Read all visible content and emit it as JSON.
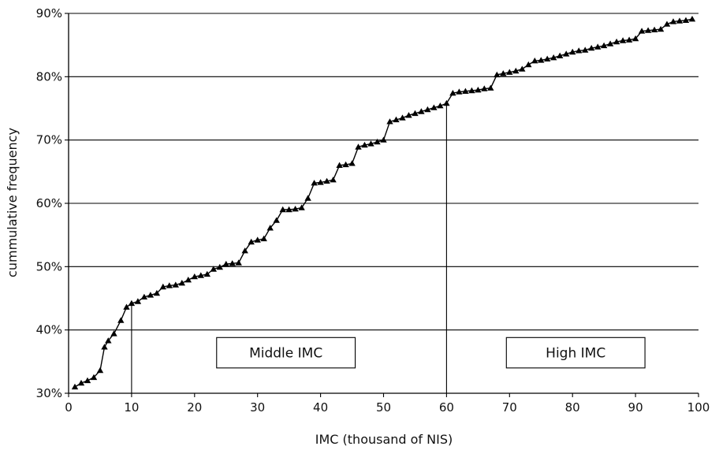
{
  "chart_data": {
    "type": "line",
    "xlabel": "IMC (thousand of NIS)",
    "ylabel": "cummulative frequency",
    "xlim": [
      0,
      100
    ],
    "ylim": [
      30,
      90
    ],
    "x_ticks": [
      "0",
      "10",
      "20",
      "30",
      "40",
      "50",
      "60",
      "70",
      "80",
      "90",
      "100"
    ],
    "y_ticks": [
      "30%",
      "40%",
      "50%",
      "60%",
      "70%",
      "80%",
      "90%"
    ],
    "grid": "horizontal",
    "marker": "triangle",
    "series": [
      {
        "x": [
          1,
          2,
          3,
          4,
          5,
          5.7,
          6.3,
          7.2,
          8.3,
          9.2,
          10,
          11,
          12,
          13,
          14,
          15,
          16,
          17,
          18,
          19,
          20,
          21,
          22,
          23,
          24,
          25,
          26,
          27,
          28,
          29,
          30,
          31,
          32,
          33,
          34,
          35,
          36,
          37,
          38,
          39,
          40,
          41,
          42,
          43,
          44,
          45,
          46,
          47,
          48,
          49,
          50,
          51,
          52,
          53,
          54,
          55,
          56,
          57,
          58,
          59,
          60,
          61,
          62,
          63,
          64,
          65,
          66,
          67,
          68,
          69,
          70,
          71,
          72,
          73,
          74,
          75,
          76,
          77,
          78,
          79,
          80,
          81,
          82,
          83,
          84,
          85,
          86,
          87,
          88,
          89,
          90,
          91,
          92,
          93,
          94,
          95,
          96,
          97,
          98,
          99
        ],
        "y": [
          31.0,
          31.6,
          32.0,
          32.5,
          33.6,
          37.3,
          38.3,
          39.4,
          41.5,
          43.6,
          44.2,
          44.5,
          45.2,
          45.5,
          45.8,
          46.8,
          47.0,
          47.1,
          47.4,
          47.9,
          48.4,
          48.6,
          48.8,
          49.6,
          49.9,
          50.4,
          50.5,
          50.6,
          52.5,
          53.9,
          54.2,
          54.4,
          56.1,
          57.3,
          59.0,
          59.0,
          59.1,
          59.3,
          60.8,
          63.2,
          63.3,
          63.5,
          63.7,
          66.0,
          66.1,
          66.3,
          68.9,
          69.2,
          69.4,
          69.7,
          70.0,
          72.9,
          73.2,
          73.5,
          73.9,
          74.2,
          74.5,
          74.8,
          75.1,
          75.4,
          75.8,
          77.4,
          77.6,
          77.7,
          77.8,
          77.9,
          78.1,
          78.2,
          80.3,
          80.5,
          80.7,
          80.9,
          81.2,
          81.9,
          82.5,
          82.6,
          82.8,
          83.0,
          83.3,
          83.6,
          83.9,
          84.1,
          84.2,
          84.5,
          84.7,
          84.9,
          85.2,
          85.5,
          85.7,
          85.8,
          86.0,
          87.2,
          87.3,
          87.4,
          87.5,
          88.3,
          88.7,
          88.8,
          88.9,
          89.1
        ]
      }
    ],
    "reference_lines_x": [
      10,
      60
    ],
    "annotations": [
      {
        "text": "Middle IMC",
        "x0": 23.5,
        "x1": 45.5,
        "y0": 34.0,
        "y1": 38.8
      },
      {
        "text": "High IMC",
        "x0": 69.5,
        "x1": 91.5,
        "y0": 34.0,
        "y1": 38.8
      }
    ]
  }
}
